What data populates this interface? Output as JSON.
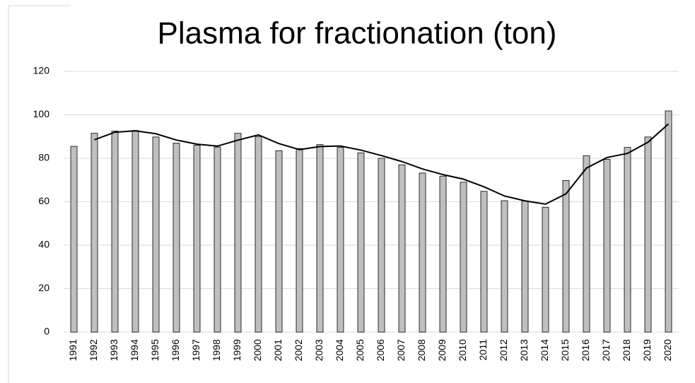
{
  "chart_data": {
    "type": "bar",
    "title": "Plasma for fractionation (ton)",
    "categories": [
      "1991",
      "1992",
      "1993",
      "1994",
      "1995",
      "1996",
      "1997",
      "1998",
      "1999",
      "2000",
      "2001",
      "2002",
      "2003",
      "2004",
      "2005",
      "2006",
      "2007",
      "2008",
      "2009",
      "2010",
      "2011",
      "2012",
      "2013",
      "2014",
      "2015",
      "2016",
      "2017",
      "2018",
      "2019",
      "2020"
    ],
    "series": [
      {
        "type": "bar",
        "color": "#bfbfbf",
        "values": [
          85.5,
          91.5,
          92.5,
          92.8,
          89.8,
          87,
          86,
          85.2,
          91.5,
          90,
          83.5,
          84.5,
          86.3,
          85,
          82.5,
          80,
          77,
          73.2,
          71.8,
          69,
          64.8,
          60.5,
          60.3,
          57.5,
          69.8,
          81.2,
          79.5,
          85,
          89.8,
          101.8
        ]
      },
      {
        "type": "line",
        "color": "#000000",
        "values": [
          null,
          88.5,
          92,
          92.65,
          91.3,
          88.4,
          86.5,
          85.6,
          88.35,
          90.75,
          86.75,
          84,
          85.4,
          85.65,
          83.75,
          81.25,
          78.5,
          75.1,
          72.5,
          70.4,
          66.9,
          62.65,
          60.4,
          58.9,
          63.65,
          75.5,
          80.35,
          82.25,
          87.4,
          95.8
        ]
      }
    ],
    "ylim": [
      0,
      120
    ],
    "yticks": [
      0,
      20,
      40,
      60,
      80,
      100,
      120
    ],
    "grid": true
  }
}
